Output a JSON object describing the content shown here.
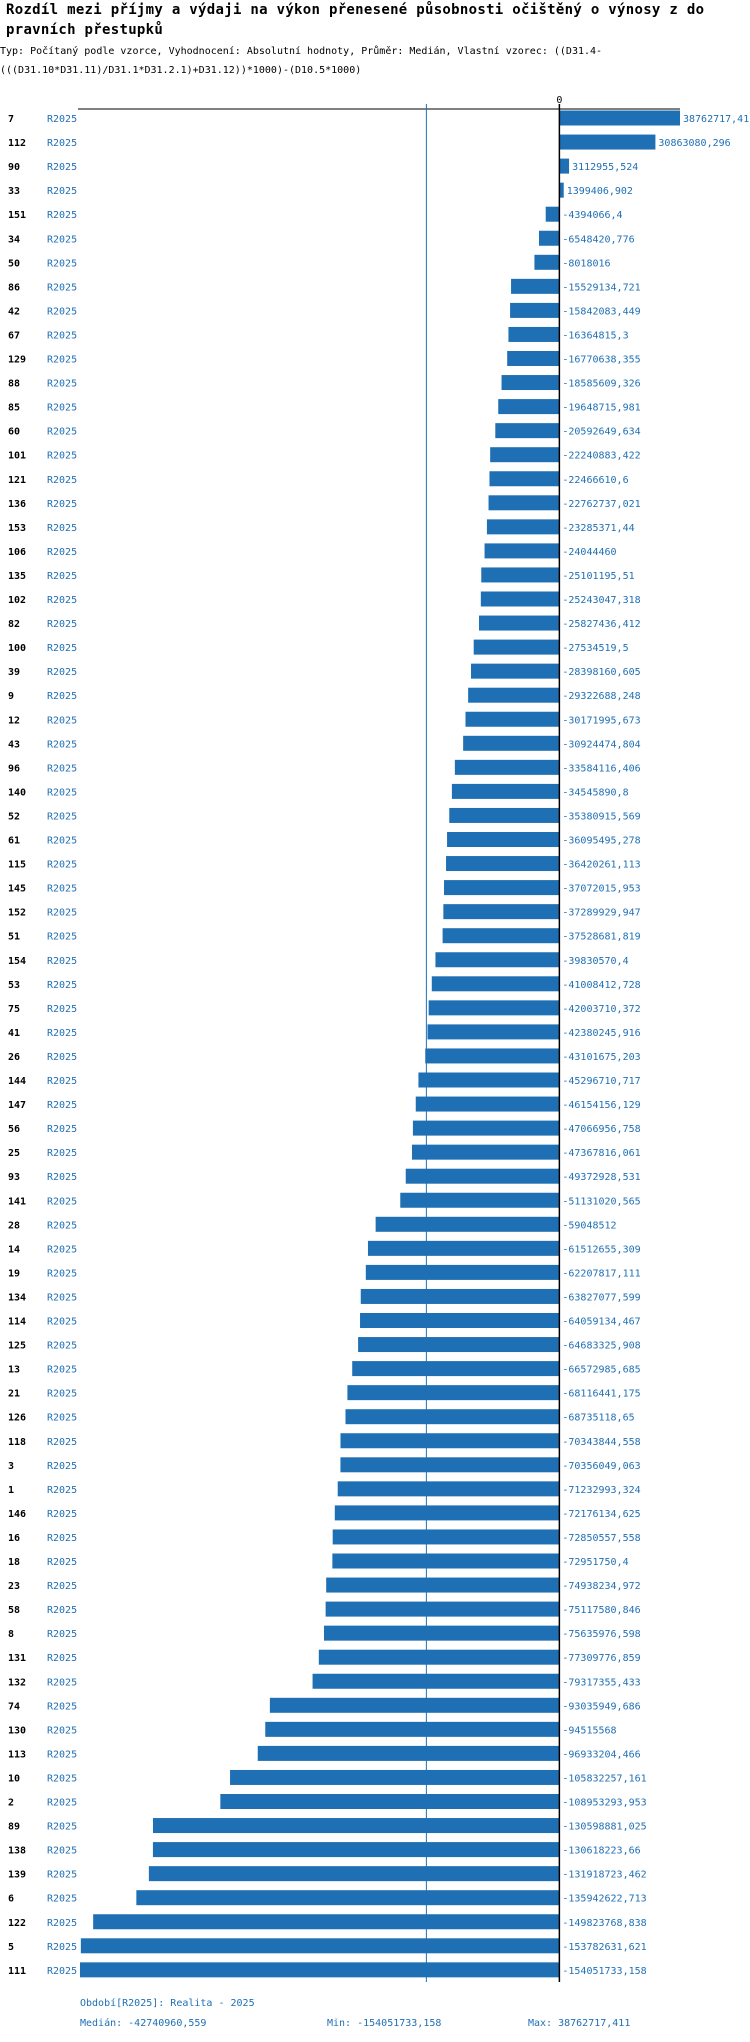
{
  "chart_data": {
    "type": "bar",
    "orientation": "horizontal",
    "title": "Rozdíl mezi příjmy a výdaji na výkon přenesené působnosti očištěný o výnosy z do pravních přestupků",
    "subtitle": "Typ: Počítaný podle vzorce, Vyhodnocení: Absolutní hodnoty, Průměr: Medián, Vlastní vzorec: ((D31.4-(((D31.10*D31.11)/D31.1*D31.2.1)+D31.12))*1000)-(D10.5*1000)",
    "period": "R2025",
    "zero_label": "0",
    "xlim": [
      -154051733.158,
      38762717.41
    ],
    "median": -42740960.559,
    "bar_color": "#1f6fb4",
    "categories": [
      "7",
      "112",
      "90",
      "33",
      "151",
      "34",
      "50",
      "86",
      "42",
      "67",
      "129",
      "88",
      "85",
      "60",
      "101",
      "121",
      "136",
      "153",
      "106",
      "135",
      "102",
      "82",
      "100",
      "39",
      "9",
      "12",
      "43",
      "96",
      "140",
      "52",
      "61",
      "115",
      "145",
      "152",
      "51",
      "154",
      "53",
      "75",
      "41",
      "26",
      "144",
      "147",
      "56",
      "25",
      "93",
      "141",
      "28",
      "14",
      "19",
      "134",
      "114",
      "125",
      "13",
      "21",
      "126",
      "118",
      "3",
      "1",
      "146",
      "16",
      "18",
      "23",
      "58",
      "8",
      "131",
      "132",
      "74",
      "130",
      "113",
      "10",
      "2",
      "89",
      "138",
      "139",
      "6",
      "122",
      "5",
      "111"
    ],
    "values": [
      38762717.41,
      30863080.296,
      3112955.524,
      1399406.902,
      -4394066.4,
      -6548420.776,
      -8018016,
      -15529134.721,
      -15842083.449,
      -16364815.3,
      -16770638.355,
      -18585609.326,
      -19648715.981,
      -20592649.634,
      -22240883.422,
      -22466610.6,
      -22762737.021,
      -23285371.44,
      -24044460,
      -25101195.51,
      -25243047.318,
      -25827436.412,
      -27534519.5,
      -28398160.605,
      -29322688.248,
      -30171995.673,
      -30924474.804,
      -33584116.406,
      -34545890.8,
      -35380915.569,
      -36095495.278,
      -36420261.113,
      -37072015.953,
      -37289929.947,
      -37528681.819,
      -39830570.4,
      -41008412.728,
      -42003710.372,
      -42380245.916,
      -43101675.203,
      -45296710.717,
      -46154156.129,
      -47066956.758,
      -47367816.061,
      -49372928.531,
      -51131020.565,
      -59048512,
      -61512655.309,
      -62207817.111,
      -63827077.599,
      -64059134.467,
      -64683325.908,
      -66572985.685,
      -68116441.175,
      -68735118.65,
      -70343844.558,
      -70356049.063,
      -71232993.324,
      -72176134.625,
      -72850557.558,
      -72951750.4,
      -74938234.972,
      -75117580.846,
      -75635976.598,
      -77309776.859,
      -79317355.433,
      -93035949.686,
      -94515568,
      -96933204.466,
      -105832257.161,
      -108953293.953,
      -130598881.025,
      -130618223.66,
      -131918723.462,
      -135942622.713,
      -149823768.838,
      -153782631.621,
      -154051733.158
    ],
    "value_labels": [
      "38762717,41",
      "30863080,296",
      "3112955,524",
      "1399406,902",
      "-4394066,4",
      "-6548420,776",
      "-8018016",
      "-15529134,721",
      "-15842083,449",
      "-16364815,3",
      "-16770638,355",
      "-18585609,326",
      "-19648715,981",
      "-20592649,634",
      "-22240883,422",
      "-22466610,6",
      "-22762737,021",
      "-23285371,44",
      "-24044460",
      "-25101195,51",
      "-25243047,318",
      "-25827436,412",
      "-27534519,5",
      "-28398160,605",
      "-29322688,248",
      "-30171995,673",
      "-30924474,804",
      "-33584116,406",
      "-34545890,8",
      "-35380915,569",
      "-36095495,278",
      "-36420261,113",
      "-37072015,953",
      "-37289929,947",
      "-37528681,819",
      "-39830570,4",
      "-41008412,728",
      "-42003710,372",
      "-42380245,916",
      "-43101675,203",
      "-45296710,717",
      "-46154156,129",
      "-47066956,758",
      "-47367816,061",
      "-49372928,531",
      "-51131020,565",
      "-59048512",
      "-61512655,309",
      "-62207817,111",
      "-63827077,599",
      "-64059134,467",
      "-64683325,908",
      "-66572985,685",
      "-68116441,175",
      "-68735118,65",
      "-70343844,558",
      "-70356049,063",
      "-71232993,324",
      "-72176134,625",
      "-72850557,558",
      "-72951750,4",
      "-74938234,972",
      "-75117580,846",
      "-75635976,598",
      "-77309776,859",
      "-79317355,433",
      "-93035949,686",
      "-94515568",
      "-96933204,466",
      "-105832257,161",
      "-108953293,953",
      "-130598881,025",
      "-130618223,66",
      "-131918723,462",
      "-135942622,713",
      "-149823768,838",
      "-153782631,621",
      "-154051733,158"
    ]
  },
  "footer": {
    "period_note": "Období[R2025]: Realita - 2025",
    "median_text": "Medián: -42740960,559",
    "min_text": "Min: -154051733,158",
    "max_text": "Max: 38762717,411"
  }
}
